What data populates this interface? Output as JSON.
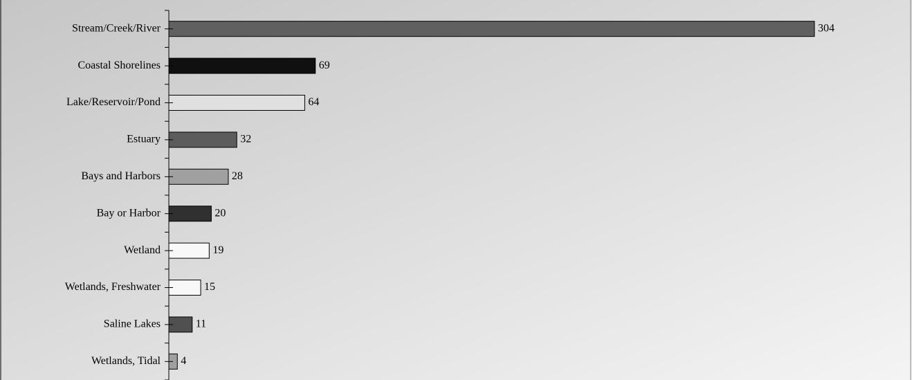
{
  "chart_data": {
    "type": "bar",
    "orientation": "horizontal",
    "categories": [
      "Stream/Creek/River",
      "Coastal Shorelines",
      "Lake/Reservoir/Pond",
      "Estuary",
      "Bays and Harbors",
      "Bay or Harbor",
      "Wetland",
      "Wetlands, Freshwater",
      "Saline Lakes",
      "Wetlands, Tidal"
    ],
    "values": [
      304,
      69,
      64,
      32,
      28,
      20,
      19,
      15,
      11,
      4
    ],
    "colors": [
      "#606060",
      "#101010",
      "#e0e0e0",
      "#5c5c5c",
      "#a0a0a0",
      "#303030",
      "#f8f8f8",
      "#f8f8f8",
      "#505050",
      "#a0a0a0"
    ]
  }
}
